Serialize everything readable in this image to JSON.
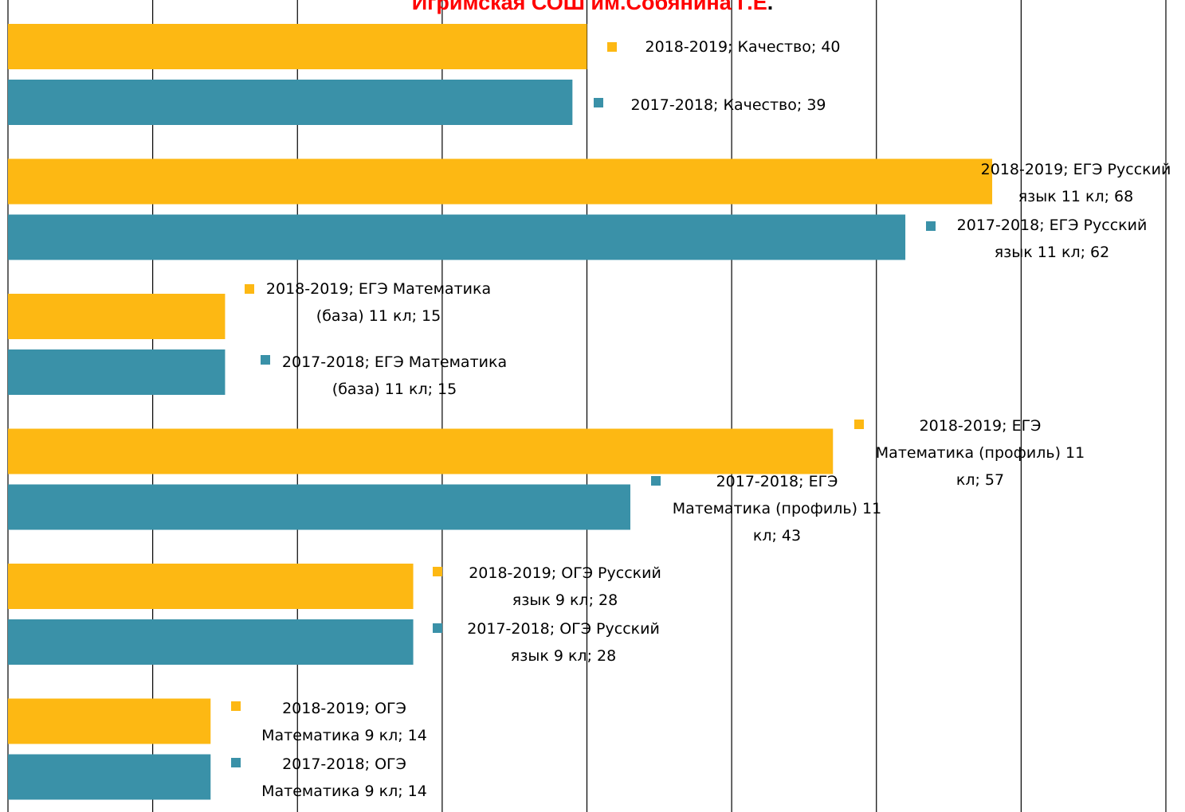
{
  "title": "Игримская СОШ им.Собянина Г.Е",
  "title_suffix": ".",
  "colors": {
    "series_2018_2019": "#FDB813",
    "series_2017_2018": "#3A91A8",
    "title": "#FF0000",
    "grid": "#000000"
  },
  "chart_data": {
    "type": "bar",
    "orientation": "horizontal",
    "title": "Игримская СОШ им.Собянина Г.Е.",
    "xlim": [
      0,
      80
    ],
    "grid": true,
    "categories": [
      "ОГЭ Математика 9 кл",
      "ОГЭ Русский язык 9 кл",
      "ЕГЭ Математика (профиль) 11 кл",
      "ЕГЭ Математика (база) 11 кл",
      "ЕГЭ Русский язык 11 кл",
      "Качество"
    ],
    "series": [
      {
        "name": "2017-2018",
        "color": "#3A91A8",
        "values": [
          14,
          28,
          43,
          15,
          62,
          39
        ]
      },
      {
        "name": "2018-2019",
        "color": "#FDB813",
        "values": [
          14,
          28,
          57,
          15,
          68,
          40
        ]
      }
    ],
    "data_labels": [
      [
        "2017-2018; ОГЭ Математика 9 кл; 14",
        "2017-2018; ОГЭ Русский язык 9 кл; 28",
        "2017-2018; ЕГЭ Математика (профиль) 11 кл; 43",
        "2017-2018; ЕГЭ Математика (база) 11 кл; 15",
        "2017-2018; ЕГЭ Русский язык 11 кл; 62",
        "2017-2018; Качество; 39"
      ],
      [
        "2018-2019; ОГЭ Математика 9 кл; 14",
        "2018-2019; ОГЭ Русский язык 9 кл; 28",
        "2018-2019; ЕГЭ Математика (профиль) 11 кл; 57",
        "2018-2019; ЕГЭ Математика (база) 11 кл; 15",
        "2018-2019; ЕГЭ Русский язык 11 кл; 68",
        "2018-2019; Качество; 40"
      ]
    ]
  }
}
